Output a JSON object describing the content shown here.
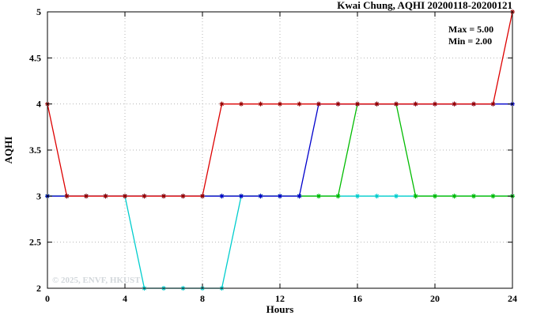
{
  "chart_data": {
    "type": "line",
    "title": "Kwai Chung, AQHI 20200118-20200121",
    "xlabel": "Hours",
    "ylabel": "AQHI",
    "xlim": [
      0,
      24
    ],
    "ylim": [
      2.0,
      5.0
    ],
    "xticks": [
      0,
      4,
      8,
      12,
      16,
      20,
      24
    ],
    "xtick_labels": [
      "0",
      "4",
      "8",
      "12",
      "16",
      "20",
      "24"
    ],
    "yticks": [
      2,
      2.5,
      3,
      3.5,
      4,
      4.5,
      5
    ],
    "ytick_labels": [
      "2",
      "2.5",
      "3",
      "3.5",
      "4",
      "4.5",
      "5"
    ],
    "grid": true,
    "legend": "none",
    "annotations": [
      {
        "text": "Max = 5.00"
      },
      {
        "text": "Min = 2.00"
      }
    ],
    "watermark": "© 2025, ENVF, HKUST",
    "x": [
      0,
      1,
      2,
      3,
      4,
      5,
      6,
      7,
      8,
      9,
      10,
      11,
      12,
      13,
      14,
      15,
      16,
      17,
      18,
      19,
      20,
      21,
      22,
      23,
      24
    ],
    "series": [
      {
        "name": "cyan",
        "color": "#00cdcd",
        "values": [
          3,
          3,
          3,
          3,
          3,
          2,
          2,
          2,
          2,
          2,
          3,
          3,
          3,
          3,
          3,
          3,
          3,
          3,
          3,
          3,
          3,
          3,
          3,
          3,
          3
        ]
      },
      {
        "name": "green",
        "color": "#00bb00",
        "values": [
          3,
          3,
          3,
          3,
          3,
          3,
          3,
          3,
          3,
          3,
          3,
          3,
          3,
          3,
          3,
          3,
          4,
          4,
          4,
          3,
          3,
          3,
          3,
          3,
          3
        ]
      },
      {
        "name": "blue",
        "color": "#0000cc",
        "values": [
          3,
          3,
          3,
          3,
          3,
          3,
          3,
          3,
          3,
          3,
          3,
          3,
          3,
          3,
          4,
          4,
          4,
          4,
          4,
          4,
          4,
          4,
          4,
          4,
          4
        ]
      },
      {
        "name": "red",
        "color": "#dd0000",
        "marker_color": "#990000",
        "values": [
          4,
          3,
          3,
          3,
          3,
          3,
          3,
          3,
          3,
          4,
          4,
          4,
          4,
          4,
          4,
          4,
          4,
          4,
          4,
          4,
          4,
          4,
          4,
          4,
          5
        ]
      }
    ]
  }
}
